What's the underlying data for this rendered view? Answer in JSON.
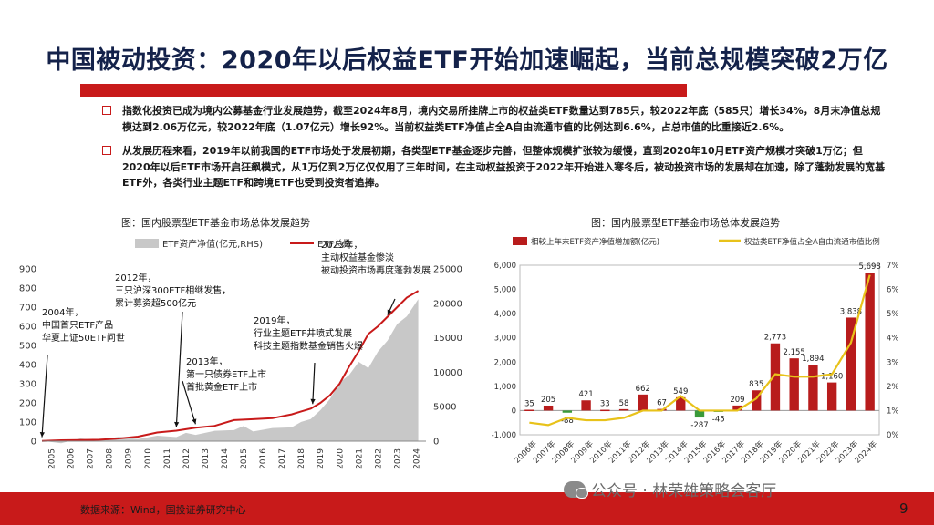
{
  "slide": {
    "title": "中国被动投资：2020年以后权益ETF开始加速崛起，当前总规模突破2万亿",
    "bullets": [
      "指数化投资已成为境内公募基金行业发展趋势，截至2024年8月，境内交易所挂牌上市的权益类ETF数量达到785只，较2022年底（585只）增长34%，8月末净值总规模达到2.06万亿元，较2022年底（1.07亿元）增长92%。当前权益类ETF净值占全A自由流通市值的比例达到6.6%，占总市值的比重接近2.6%。",
      "从发展历程来看，2019年以前我国的ETF市场处于发展初期，各类型ETF基金逐步完善，但整体规模扩张较为缓慢，直到2020年10月ETF资产规模才突破1万亿；但2020年以后ETF市场开启狂飙模式，从1万亿到2万亿仅仅用了三年时间，在主动权益投资于2022年开始进入寒冬后，被动投资市场的发展却在加速，除了蓬勃发展的宽基ETF外，各类行业主题ETF和跨境ETF也受到投资者追捧。"
    ],
    "source": "数据来源：Wind，国投证券研究中心",
    "watermark": "公众号 · 林荣雄策略会客厅",
    "page_number": "9"
  },
  "chart_data": [
    {
      "type": "area",
      "title": "图：国内股票型ETF基金市场总体发展趋势",
      "legend": [
        "ETF资产净值(亿元,RHS)",
        "ETF总数"
      ],
      "colors": {
        "area": "#c8c8c8",
        "line": "#c81a1a"
      },
      "x_ticks": [
        "2005",
        "2006",
        "2007",
        "2008",
        "2009",
        "2010",
        "2011",
        "2012",
        "2013",
        "2014",
        "2015",
        "2016",
        "2017",
        "2018",
        "2019",
        "2020",
        "2021",
        "2022",
        "2023",
        "2024"
      ],
      "ylim_left": [
        0,
        900
      ],
      "yticks_left": [
        0,
        100,
        200,
        300,
        400,
        500,
        600,
        700,
        800,
        900
      ],
      "ylim_right": [
        0,
        25000
      ],
      "yticks_right": [
        0,
        5000,
        10000,
        15000,
        20000,
        25000
      ],
      "etf_count": {
        "x": [
          2005.0,
          2006.0,
          2007.0,
          2008.0,
          2009.0,
          2010.0,
          2011.0,
          2012.0,
          2013.0,
          2014.0,
          2015.0,
          2016.0,
          2017.0,
          2018.0,
          2018.5,
          2019.0,
          2019.5,
          2020.0,
          2020.5,
          2021.0,
          2021.5,
          2022.0,
          2022.5,
          2023.0,
          2023.5,
          2024.0,
          2024.6
        ],
        "y": [
          1,
          5,
          6,
          8,
          14,
          24,
          45,
          55,
          70,
          80,
          110,
          115,
          120,
          140,
          155,
          170,
          200,
          240,
          300,
          390,
          470,
          560,
          600,
          650,
          700,
          750,
          785
        ]
      },
      "etf_nav": {
        "x": [
          2005.0,
          2006.0,
          2007.0,
          2008.0,
          2009.0,
          2010.0,
          2011.0,
          2012.0,
          2012.5,
          2013.0,
          2014.0,
          2015.0,
          2015.5,
          2016.0,
          2017.0,
          2018.0,
          2018.5,
          2019.0,
          2019.5,
          2020.0,
          2020.5,
          2021.0,
          2021.5,
          2022.0,
          2022.5,
          2023.0,
          2023.5,
          2024.0,
          2024.6
        ],
        "y": [
          50,
          100,
          400,
          500,
          650,
          700,
          800,
          1000,
          1200,
          1300,
          1500,
          2000,
          2200,
          1800,
          1900,
          2400,
          2800,
          3600,
          4500,
          6500,
          8500,
          10000,
          11500,
          11000,
          13000,
          15000,
          17000,
          18500,
          20600
        ]
      },
      "annotations": [
        {
          "year": 2005.0,
          "count": 2,
          "lines": [
            "2004年，",
            "中国首只ETF产品",
            "华夏上证50ETF问世"
          ]
        },
        {
          "year": 2012.0,
          "count": 55,
          "lines": [
            "2012年，",
            "三只沪深300ETF相继发售，",
            "累计募资超500亿元"
          ]
        },
        {
          "year": 2013.0,
          "count": 70,
          "lines": [
            "2013年，",
            "第一只债券ETF上市",
            "首批黄金ETF上市"
          ]
        },
        {
          "year": 2019.1,
          "count": 175,
          "lines": [
            "2019年，",
            "行业主题ETF井喷式发展",
            "科技主题指数基金销售火爆"
          ]
        },
        {
          "year": 2023.0,
          "count": 640,
          "lines": [
            "2023年，",
            "主动权益基金惨淡",
            "被动投资市场再度蓬勃发展"
          ]
        }
      ]
    },
    {
      "type": "bar",
      "title": "图：国内股票型ETF基金市场总体发展趋势",
      "legend": [
        "相较上年末ETF资产净值增加额(亿元)",
        "权益类ETF净值占全A自由流通市值比例"
      ],
      "colors": {
        "bar": "#b81c1c",
        "negative": "#3a9a3a",
        "line": "#e8c21a"
      },
      "categories": [
        "2006年",
        "2007年",
        "2008年",
        "2009年",
        "2010年",
        "2011年",
        "2012年",
        "2013年",
        "2014年",
        "2015年",
        "2016年",
        "2017年",
        "2018年",
        "2019年",
        "2020年",
        "2021年",
        "2022年",
        "2023年",
        "2024年"
      ],
      "values": [
        35,
        205,
        -88,
        421,
        33,
        58,
        662,
        67,
        549,
        -287,
        -45,
        209,
        835,
        2773,
        2155,
        1894,
        1160,
        3838,
        5698
      ],
      "ratio_percent": [
        0.5,
        0.4,
        0.7,
        0.6,
        0.6,
        0.7,
        1.0,
        1.0,
        1.6,
        1.0,
        1.0,
        1.0,
        1.5,
        2.5,
        2.4,
        2.4,
        2.5,
        3.8,
        6.6
      ],
      "ylim_left": [
        -1000,
        6000
      ],
      "yticks_left": [
        -1000,
        0,
        1000,
        2000,
        3000,
        4000,
        5000,
        6000
      ],
      "ylim_right": [
        0,
        7
      ],
      "yticks_right": [
        0,
        1,
        2,
        3,
        4,
        5,
        6,
        7
      ]
    }
  ]
}
